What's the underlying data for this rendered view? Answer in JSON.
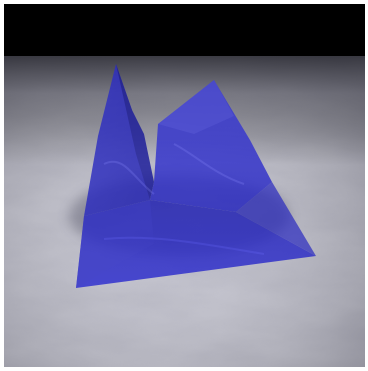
{
  "scene": {
    "background_color": "#000000",
    "floor_base_color": "#b8b8c4",
    "floor_light_color": "#eef0f6",
    "floor_dark_color": "#6f6f80",
    "sheet_color": "#2a2acc",
    "sheet_dark_color": "#1a1a9a",
    "sheet_light_color": "#4a4ae0",
    "shadow_color": "#3a3a50"
  }
}
